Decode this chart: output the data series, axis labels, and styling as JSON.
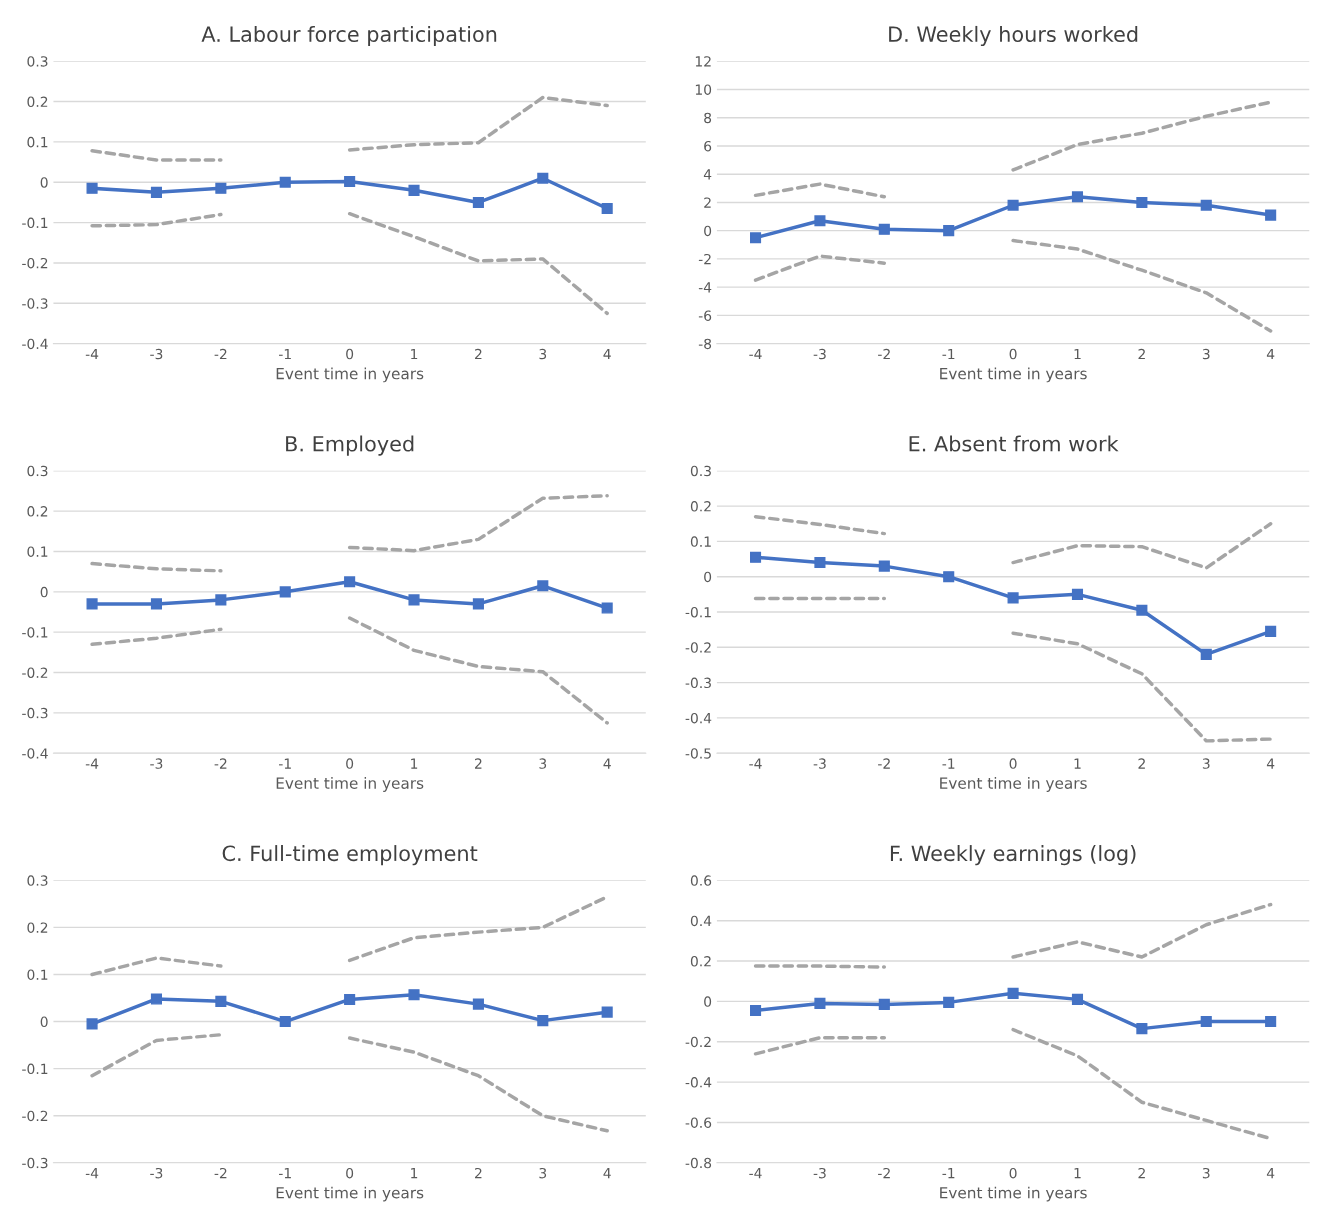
{
  "chart_data": [
    {
      "type": "line",
      "title": "A. Labour force participation",
      "xlabel": "Event time in years",
      "categories": [
        "-4",
        "-3",
        "-2",
        "-1",
        "0",
        "1",
        "2",
        "3",
        "4"
      ],
      "ylim": [
        -0.4,
        0.3
      ],
      "yticks": [
        -0.4,
        -0.3,
        -0.2,
        -0.1,
        0,
        0.1,
        0.2,
        0.3
      ],
      "grid": "y",
      "legend": false,
      "series": [
        {
          "color": "#a5a5a5",
          "marker": "none",
          "line_style": "dashed",
          "values": [
            0.078,
            0.055,
            0.055,
            null,
            0.08,
            0.093,
            0.098,
            0.21,
            0.19
          ]
        },
        {
          "color": "#a5a5a5",
          "marker": "none",
          "line_style": "dashed",
          "values": [
            -0.108,
            -0.105,
            -0.08,
            null,
            -0.078,
            -0.135,
            -0.195,
            -0.19,
            -0.325
          ]
        },
        {
          "color": "#4472c4",
          "marker": "square",
          "line_style": "solid",
          "values": [
            -0.015,
            -0.025,
            -0.015,
            0,
            0.002,
            -0.02,
            -0.05,
            0.01,
            -0.065
          ]
        }
      ]
    },
    {
      "type": "line",
      "title": "D. Weekly hours worked",
      "xlabel": "Event time in years",
      "categories": [
        "-4",
        "-3",
        "-2",
        "-1",
        "0",
        "1",
        "2",
        "3",
        "4"
      ],
      "ylim": [
        -8,
        12
      ],
      "yticks": [
        -8,
        -6,
        -4,
        -2,
        0,
        2,
        4,
        6,
        8,
        10,
        12
      ],
      "grid": "y",
      "legend": false,
      "series": [
        {
          "color": "#a5a5a5",
          "marker": "none",
          "line_style": "dashed",
          "values": [
            2.5,
            3.3,
            2.4,
            null,
            4.3,
            6.1,
            6.9,
            8.1,
            9.1
          ]
        },
        {
          "color": "#a5a5a5",
          "marker": "none",
          "line_style": "dashed",
          "values": [
            -3.5,
            -1.8,
            -2.3,
            null,
            -0.7,
            -1.3,
            -2.8,
            -4.4,
            -7.1
          ]
        },
        {
          "color": "#4472c4",
          "marker": "square",
          "line_style": "solid",
          "values": [
            -0.5,
            0.7,
            0.1,
            0,
            1.8,
            2.4,
            2.0,
            1.8,
            1.1
          ]
        }
      ]
    },
    {
      "type": "line",
      "title": "B. Employed",
      "xlabel": "Event time in years",
      "categories": [
        "-4",
        "-3",
        "-2",
        "-1",
        "0",
        "1",
        "2",
        "3",
        "4"
      ],
      "ylim": [
        -0.4,
        0.3
      ],
      "yticks": [
        -0.4,
        -0.3,
        -0.2,
        -0.1,
        0,
        0.1,
        0.2,
        0.3
      ],
      "grid": "y",
      "legend": false,
      "series": [
        {
          "color": "#a5a5a5",
          "marker": "none",
          "line_style": "dashed",
          "values": [
            0.07,
            0.057,
            0.052,
            null,
            0.11,
            0.102,
            0.13,
            0.232,
            0.238
          ]
        },
        {
          "color": "#a5a5a5",
          "marker": "none",
          "line_style": "dashed",
          "values": [
            -0.13,
            -0.115,
            -0.093,
            null,
            -0.065,
            -0.145,
            -0.185,
            -0.198,
            -0.325
          ]
        },
        {
          "color": "#4472c4",
          "marker": "square",
          "line_style": "solid",
          "values": [
            -0.03,
            -0.03,
            -0.02,
            0,
            0.025,
            -0.02,
            -0.03,
            0.015,
            -0.04
          ]
        }
      ]
    },
    {
      "type": "line",
      "title": "E. Absent from work",
      "xlabel": "Event time in years",
      "categories": [
        "-4",
        "-3",
        "-2",
        "-1",
        "0",
        "1",
        "2",
        "3",
        "4"
      ],
      "ylim": [
        -0.5,
        0.3
      ],
      "yticks": [
        -0.5,
        -0.4,
        -0.3,
        -0.2,
        -0.1,
        0,
        0.1,
        0.2,
        0.3
      ],
      "grid": "y",
      "legend": false,
      "series": [
        {
          "color": "#a5a5a5",
          "marker": "none",
          "line_style": "dashed",
          "values": [
            0.17,
            0.148,
            0.122,
            null,
            0.04,
            0.088,
            0.085,
            0.025,
            0.15
          ]
        },
        {
          "color": "#a5a5a5",
          "marker": "none",
          "line_style": "dashed",
          "values": [
            -0.062,
            -0.062,
            -0.062,
            null,
            -0.16,
            -0.19,
            -0.275,
            -0.465,
            -0.46
          ]
        },
        {
          "color": "#4472c4",
          "marker": "square",
          "line_style": "solid",
          "values": [
            0.055,
            0.04,
            0.03,
            0,
            -0.06,
            -0.05,
            -0.095,
            -0.22,
            -0.155
          ]
        }
      ]
    },
    {
      "type": "line",
      "title": "C. Full-time employment",
      "xlabel": "Event time in years",
      "categories": [
        "-4",
        "-3",
        "-2",
        "-1",
        "0",
        "1",
        "2",
        "3",
        "4"
      ],
      "ylim": [
        -0.3,
        0.3
      ],
      "yticks": [
        -0.3,
        -0.2,
        -0.1,
        0,
        0.1,
        0.2,
        0.3
      ],
      "grid": "y",
      "legend": false,
      "series": [
        {
          "color": "#a5a5a5",
          "marker": "none",
          "line_style": "dashed",
          "values": [
            0.1,
            0.135,
            0.118,
            null,
            0.13,
            0.178,
            0.19,
            0.2,
            0.265
          ]
        },
        {
          "color": "#a5a5a5",
          "marker": "none",
          "line_style": "dashed",
          "values": [
            -0.115,
            -0.04,
            -0.028,
            null,
            -0.035,
            -0.065,
            -0.115,
            -0.2,
            -0.232
          ]
        },
        {
          "color": "#4472c4",
          "marker": "square",
          "line_style": "solid",
          "values": [
            -0.005,
            0.048,
            0.043,
            0,
            0.047,
            0.057,
            0.037,
            0.002,
            0.02
          ]
        }
      ]
    },
    {
      "type": "line",
      "title": "F. Weekly earnings (log)",
      "xlabel": "Event time in years",
      "categories": [
        "-4",
        "-3",
        "-2",
        "-1",
        "0",
        "1",
        "2",
        "3",
        "4"
      ],
      "ylim": [
        -0.8,
        0.6
      ],
      "yticks": [
        -0.8,
        -0.6,
        -0.4,
        -0.2,
        0,
        0.2,
        0.4,
        0.6
      ],
      "grid": "y",
      "legend": false,
      "series": [
        {
          "color": "#a5a5a5",
          "marker": "none",
          "line_style": "dashed",
          "values": [
            0.175,
            0.175,
            0.17,
            null,
            0.22,
            0.295,
            0.22,
            0.38,
            0.48
          ]
        },
        {
          "color": "#a5a5a5",
          "marker": "none",
          "line_style": "dashed",
          "values": [
            -0.26,
            -0.18,
            -0.18,
            null,
            -0.14,
            -0.27,
            -0.5,
            -0.59,
            -0.68
          ]
        },
        {
          "color": "#4472c4",
          "marker": "square",
          "line_style": "solid",
          "values": [
            -0.045,
            -0.01,
            -0.015,
            -0.005,
            0.04,
            0.01,
            -0.135,
            -0.1,
            -0.1
          ]
        }
      ]
    }
  ]
}
